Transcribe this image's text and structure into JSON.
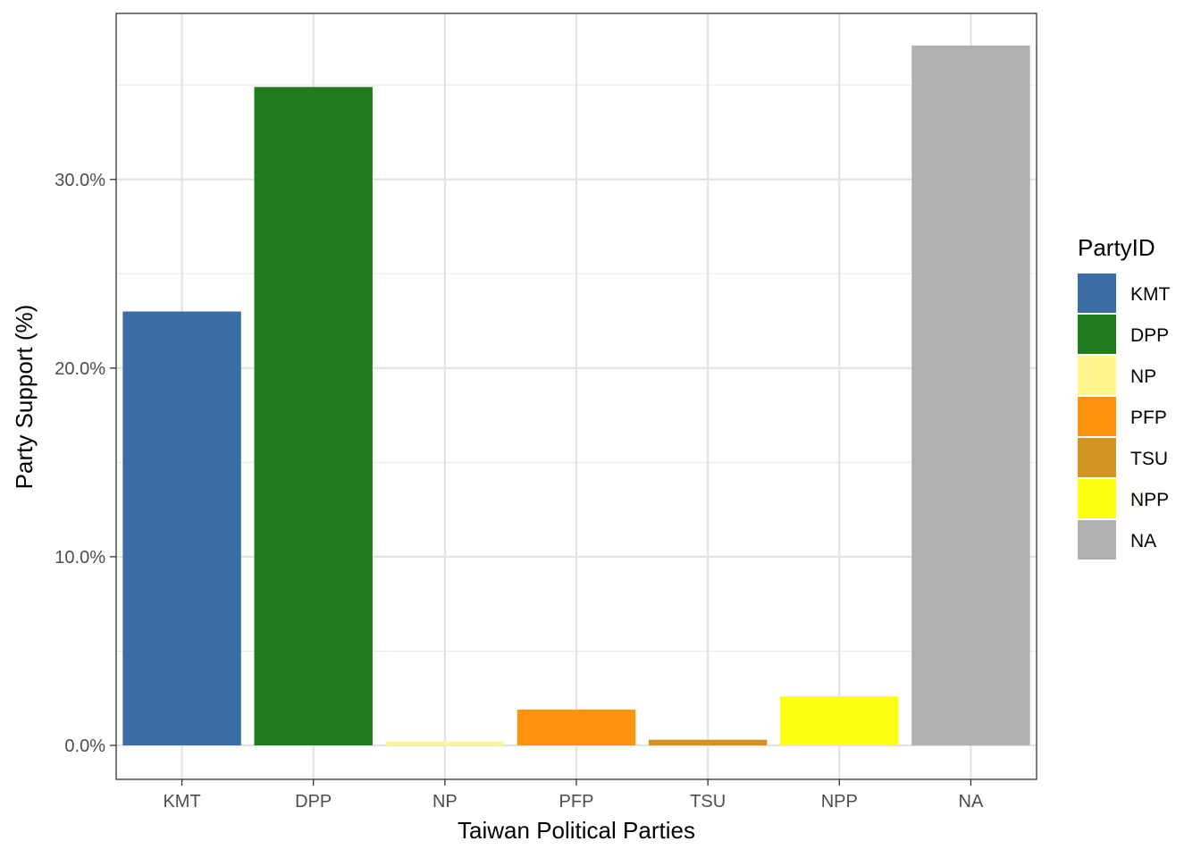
{
  "chart_data": {
    "type": "bar",
    "categories": [
      "KMT",
      "DPP",
      "NP",
      "PFP",
      "TSU",
      "NPP",
      "NA"
    ],
    "values": [
      23.0,
      34.9,
      0.2,
      1.9,
      0.3,
      2.6,
      37.1
    ],
    "colors": [
      "#3A6EA5",
      "#217B1F",
      "#FFF68F",
      "#FF940E",
      "#D29321",
      "#FFFF14",
      "#B0B0B0"
    ],
    "xlabel": "Taiwan Political Parties",
    "ylabel": "Party Support (%)",
    "ylim": [
      -1.8,
      38.8
    ],
    "yticks": [
      0,
      10,
      20,
      30
    ],
    "ytick_labels": [
      "0.0%",
      "10.0%",
      "20.0%",
      "30.0%"
    ],
    "grid": true,
    "legend": {
      "title": "PartyID",
      "position": "right",
      "entries": [
        "KMT",
        "DPP",
        "NP",
        "PFP",
        "TSU",
        "NPP",
        "NA"
      ]
    }
  }
}
